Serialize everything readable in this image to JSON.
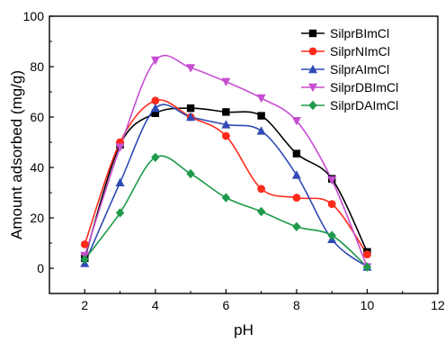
{
  "chart_data": {
    "type": "scatter",
    "title": "",
    "xlabel": "pH",
    "ylabel": "Amount adsorbed (mg/g)",
    "xlim": [
      1,
      12
    ],
    "ylim": [
      -10,
      100
    ],
    "xticks": [
      2,
      4,
      6,
      8,
      10,
      12
    ],
    "yticks": [
      0,
      20,
      40,
      60,
      80,
      100
    ],
    "grid": false,
    "legend_position": "top-right",
    "series": [
      {
        "name": "SilprBImCl",
        "color": "#000000",
        "marker": "square",
        "x": [
          2,
          3,
          4,
          5,
          6,
          7,
          8,
          9,
          10
        ],
        "y": [
          4,
          49,
          61.5,
          63.5,
          62,
          60.5,
          45.5,
          35.5,
          6.5
        ]
      },
      {
        "name": "SilprNImCl",
        "color": "#ff2a1a",
        "marker": "circle",
        "x": [
          2,
          3,
          4,
          5,
          6,
          7,
          8,
          9,
          10
        ],
        "y": [
          9.5,
          50,
          66.5,
          60,
          52.5,
          31.5,
          28,
          25.5,
          5.5
        ]
      },
      {
        "name": "SilprAImCl",
        "color": "#2f4bb5",
        "marker": "triangle-up",
        "x": [
          2,
          3,
          4,
          5,
          6,
          7,
          8,
          9,
          10
        ],
        "y": [
          2,
          34,
          63.5,
          60,
          57,
          54.5,
          37,
          11.5,
          0.5
        ]
      },
      {
        "name": "SilprDBImCl",
        "color": "#c64fd1",
        "marker": "triangle-down",
        "x": [
          2,
          3,
          4,
          5,
          6,
          7,
          8,
          9,
          10
        ],
        "y": [
          5,
          48,
          82.5,
          79.5,
          74,
          67.5,
          58.5,
          35,
          0.5
        ]
      },
      {
        "name": "SilprDAImCl",
        "color": "#1f9a4a",
        "marker": "diamond",
        "x": [
          2,
          3,
          4,
          5,
          6,
          7,
          8,
          9,
          10
        ],
        "y": [
          3.5,
          22,
          44,
          37.5,
          28,
          22.5,
          16.5,
          13,
          0.5
        ]
      }
    ]
  }
}
